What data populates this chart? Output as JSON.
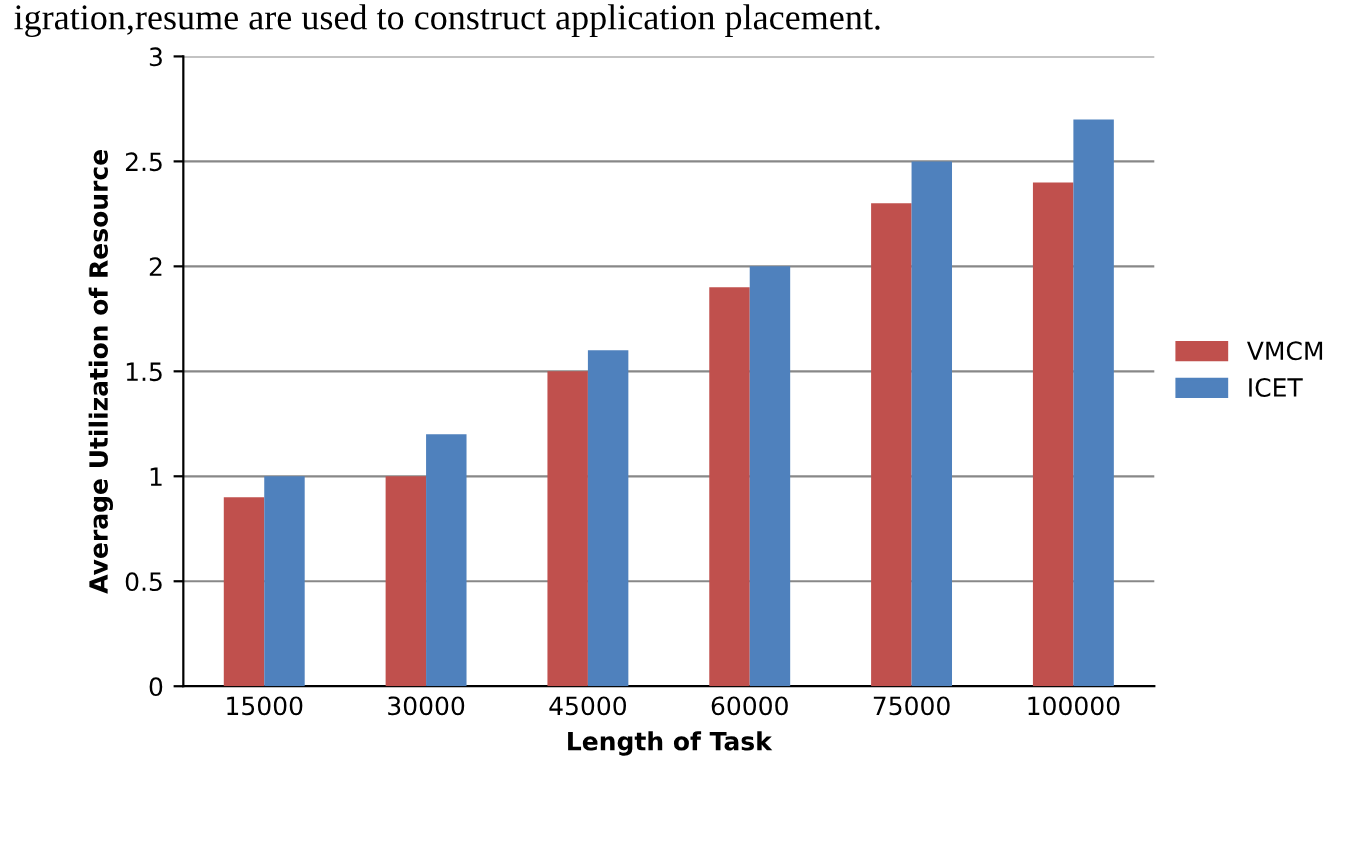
{
  "chart_data": {
    "type": "bar",
    "xlabel": "Length of Task",
    "ylabel": "Average Utilization of Resource",
    "categories": [
      "15000",
      "30000",
      "45000",
      "60000",
      "75000",
      "100000"
    ],
    "series": [
      {
        "name": "VMCM",
        "color": "#c0504d",
        "values": [
          0.9,
          1.0,
          1.5,
          1.9,
          2.3,
          2.4
        ]
      },
      {
        "name": "ICET",
        "color": "#4f81bd",
        "values": [
          1.0,
          1.2,
          1.6,
          2.0,
          2.5,
          2.7
        ]
      }
    ],
    "ylim": [
      0,
      3
    ],
    "yticks": [
      0,
      0.5,
      1,
      1.5,
      2,
      2.5,
      3
    ],
    "grid": "y",
    "legend": "right",
    "annotations": [
      "igration,resume are used to construct application placement."
    ]
  }
}
